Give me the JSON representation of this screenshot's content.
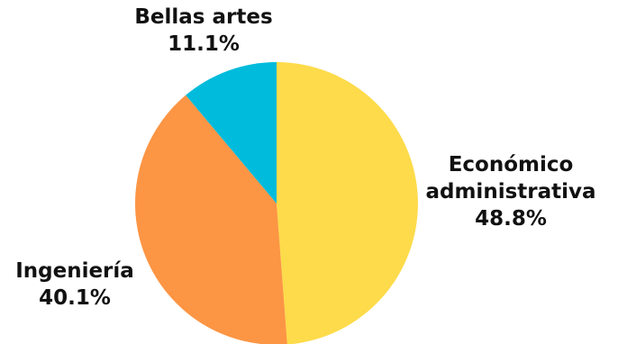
{
  "chart_data": {
    "type": "pie",
    "title": "",
    "slices": [
      {
        "label": "Económico administrativa",
        "label_lines": [
          "Económico",
          "administrativa"
        ],
        "value": 48.8,
        "value_text": "48.8%",
        "color": "#FDDB4A"
      },
      {
        "label": "Ingeniería",
        "label_lines": [
          "Ingeniería"
        ],
        "value": 40.1,
        "value_text": "40.1%",
        "color": "#FC9544"
      },
      {
        "label": "Bellas artes",
        "label_lines": [
          "Bellas artes"
        ],
        "value": 11.1,
        "value_text": "11.1%",
        "color": "#00BBDB"
      }
    ],
    "start_angle": "12 o'clock",
    "direction": "clockwise",
    "legend": "none"
  }
}
